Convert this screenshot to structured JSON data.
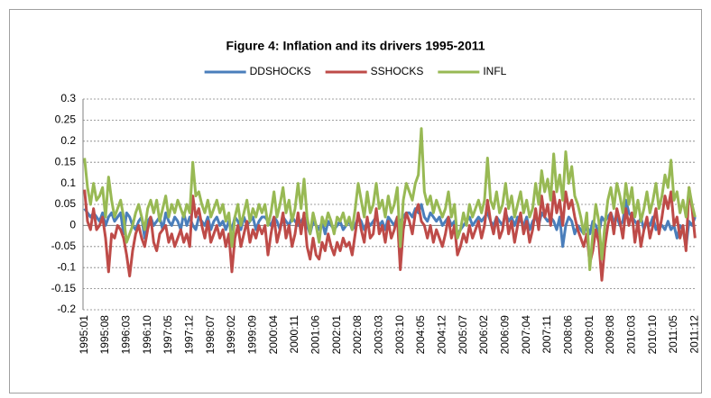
{
  "chart_data": {
    "type": "line",
    "title": "Figure 4: Inflation and its drivers 1995-2011",
    "categories": [
      "1995:01",
      null,
      null,
      null,
      null,
      null,
      null,
      "1995:08",
      null,
      null,
      null,
      null,
      null,
      null,
      "1996:03",
      null,
      null,
      null,
      null,
      null,
      null,
      "1996:10",
      null,
      null,
      null,
      null,
      null,
      null,
      "1997:05",
      null,
      null,
      null,
      null,
      null,
      null,
      "1997:12",
      null,
      null,
      null,
      null,
      null,
      null,
      "1998:07",
      null,
      null,
      null,
      null,
      null,
      null,
      "1999:02",
      null,
      null,
      null,
      null,
      null,
      null,
      "1999:09",
      null,
      null,
      null,
      null,
      null,
      null,
      "2000:04",
      null,
      null,
      null,
      null,
      null,
      null,
      "2000:11",
      null,
      null,
      null,
      null,
      null,
      null,
      "2001:06",
      null,
      null,
      null,
      null,
      null,
      null,
      "2002:01",
      null,
      null,
      null,
      null,
      null,
      null,
      "2002:08",
      null,
      null,
      null,
      null,
      null,
      null,
      "2003:03",
      null,
      null,
      null,
      null,
      null,
      null,
      "2003:10",
      null,
      null,
      null,
      null,
      null,
      null,
      "2004:05",
      null,
      null,
      null,
      null,
      null,
      null,
      "2004:12",
      null,
      null,
      null,
      null,
      null,
      null,
      "2005:07",
      null,
      null,
      null,
      null,
      null,
      null,
      "2006:02",
      null,
      null,
      null,
      null,
      null,
      null,
      "2006:09",
      null,
      null,
      null,
      null,
      null,
      null,
      "2007:04",
      null,
      null,
      null,
      null,
      null,
      null,
      "2007:11",
      null,
      null,
      null,
      null,
      null,
      null,
      "2008:06",
      null,
      null,
      null,
      null,
      null,
      null,
      "2009:01",
      null,
      null,
      null,
      null,
      null,
      null,
      "2009:08",
      null,
      null,
      null,
      null,
      null,
      null,
      "2010:03",
      null,
      null,
      null,
      null,
      null,
      null,
      "2010:10",
      null,
      null,
      null,
      null,
      null,
      null,
      "2011:05",
      null,
      null,
      null,
      null,
      null,
      null,
      "2011:12"
    ],
    "series": [
      {
        "name": "DDSHOCKS",
        "color": "#4a7ebb",
        "values": [
          0.04,
          0.03,
          0.02,
          0.03,
          0.02,
          0.01,
          0.03,
          0.0,
          0.02,
          0.03,
          0.01,
          0.02,
          0.03,
          -0.02,
          0.03,
          0.02,
          0.0,
          -0.01,
          0.01,
          0.02,
          -0.03,
          0.01,
          0.02,
          0.0,
          0.01,
          0.02,
          -0.01,
          0.03,
          0.01,
          0.0,
          0.02,
          0.01,
          -0.01,
          0.03,
          0.0,
          0.02,
          0.0,
          -0.01,
          0.02,
          0.01,
          0.0,
          0.02,
          -0.01,
          0.01,
          0.02,
          0.0,
          0.01,
          -0.01,
          0.01,
          -0.01,
          0.02,
          0.01,
          -0.01,
          0.02,
          0.0,
          0.01,
          0.02,
          -0.01,
          0.01,
          0.02,
          0.02,
          0.01,
          0.0,
          0.02,
          0.01,
          -0.01,
          0.02,
          0.01,
          0.0,
          0.02,
          0.01,
          0.0,
          0.01,
          0.02,
          0.0,
          -0.02,
          0.01,
          0.0,
          -0.01,
          0.01,
          -0.02,
          0.01,
          0.0,
          -0.01,
          0.0,
          0.01,
          -0.01,
          0.0,
          0.01,
          -0.01,
          0.0,
          0.02,
          0.01,
          -0.01,
          0.01,
          0.0,
          0.01,
          0.02,
          0.0,
          0.01,
          -0.01,
          0.02,
          0.01,
          0.0,
          0.02,
          0.01,
          0.02,
          0.03,
          0.03,
          0.02,
          0.04,
          0.03,
          0.05,
          0.02,
          0.01,
          0.03,
          0.02,
          0.01,
          0.02,
          0.0,
          0.01,
          0.02,
          0.0,
          0.01,
          -0.02,
          -0.01,
          0.0,
          0.01,
          0.02,
          0.0,
          0.01,
          0.02,
          0.01,
          0.02,
          0.03,
          0.01,
          0.0,
          0.02,
          0.01,
          0.0,
          0.03,
          0.01,
          0.02,
          0.0,
          0.02,
          0.01,
          0.0,
          0.02,
          -0.01,
          0.01,
          0.02,
          0.0,
          0.03,
          0.02,
          0.01,
          0.02,
          0.01,
          -0.01,
          0.02,
          -0.05,
          0.0,
          0.02,
          0.01,
          -0.02,
          0.0,
          -0.01,
          -0.02,
          0.0,
          -0.02,
          0.01,
          0.0,
          -0.02,
          0.02,
          0.01,
          0.02,
          0.03,
          0.01,
          0.02,
          0.0,
          0.01,
          0.06,
          0.03,
          0.02,
          0.01,
          0.0,
          0.02,
          -0.01,
          0.01,
          0.0,
          0.02,
          -0.01,
          0.0,
          0.0,
          -0.01,
          0.01,
          -0.01,
          0.0,
          -0.03,
          0.0,
          -0.01,
          -0.05,
          0.01,
          0.0,
          0.02
        ]
      },
      {
        "name": "SSHOCKS",
        "color": "#be4b48",
        "values": [
          0.085,
          0.01,
          -0.01,
          0.04,
          -0.01,
          0.0,
          0.02,
          -0.03,
          -0.11,
          -0.02,
          -0.03,
          0.0,
          -0.01,
          -0.03,
          -0.07,
          -0.12,
          -0.06,
          -0.02,
          0.0,
          -0.03,
          -0.05,
          -0.01,
          0.02,
          -0.04,
          -0.06,
          -0.02,
          -0.01,
          0.0,
          -0.04,
          -0.02,
          -0.05,
          -0.03,
          -0.01,
          -0.04,
          -0.02,
          -0.05,
          0.07,
          0.02,
          0.04,
          0.0,
          -0.03,
          0.01,
          -0.04,
          -0.02,
          0.0,
          -0.03,
          -0.01,
          -0.05,
          -0.02,
          -0.11,
          -0.03,
          0.0,
          -0.05,
          -0.02,
          0.01,
          -0.04,
          -0.01,
          -0.03,
          0.0,
          -0.02,
          0.0,
          -0.07,
          -0.02,
          0.02,
          -0.04,
          -0.01,
          0.03,
          -0.03,
          0.0,
          -0.05,
          -0.02,
          0.03,
          -0.02,
          0.03,
          -0.05,
          -0.08,
          -0.03,
          -0.07,
          -0.08,
          -0.04,
          -0.06,
          -0.02,
          -0.05,
          -0.07,
          -0.04,
          -0.06,
          -0.03,
          -0.05,
          -0.04,
          -0.07,
          -0.02,
          0.03,
          -0.01,
          -0.04,
          0.02,
          -0.03,
          -0.02,
          0.04,
          -0.02,
          0.0,
          -0.04,
          0.01,
          -0.03,
          -0.01,
          0.02,
          -0.105,
          -0.01,
          0.03,
          0.01,
          -0.02,
          0.03,
          0.05,
          0.01,
          0.0,
          -0.03,
          0.0,
          -0.04,
          -0.01,
          -0.03,
          -0.05,
          -0.02,
          0.02,
          -0.03,
          0.0,
          -0.07,
          -0.05,
          -0.02,
          -0.04,
          0.0,
          -0.03,
          -0.01,
          0.01,
          -0.03,
          0.0,
          0.06,
          0.01,
          -0.02,
          0.02,
          -0.03,
          -0.01,
          0.04,
          -0.02,
          0.01,
          -0.04,
          0.0,
          0.03,
          -0.02,
          0.01,
          -0.04,
          -0.01,
          0.04,
          -0.01,
          0.07,
          0.02,
          0.05,
          0.0,
          0.08,
          0.03,
          0.06,
          0.0,
          0.08,
          0.04,
          0.06,
          0.02,
          -0.01,
          -0.03,
          -0.05,
          -0.02,
          -0.09,
          -0.06,
          -0.01,
          -0.04,
          -0.13,
          -0.05,
          0.0,
          0.03,
          -0.02,
          0.04,
          0.01,
          -0.03,
          0.04,
          0.0,
          0.03,
          -0.04,
          0.01,
          -0.05,
          -0.01,
          0.02,
          -0.03,
          0.0,
          0.04,
          -0.02,
          0.02,
          0.07,
          0.04,
          0.08,
          0.0,
          0.02,
          -0.03,
          0.0,
          -0.06,
          0.09,
          0.04,
          -0.03
        ]
      },
      {
        "name": "INFL",
        "color": "#98b954",
        "values": [
          0.16,
          0.09,
          0.05,
          0.1,
          0.06,
          0.07,
          0.09,
          0.02,
          0.115,
          0.06,
          0.02,
          0.04,
          0.06,
          0.02,
          -0.04,
          -0.02,
          0.0,
          0.03,
          0.05,
          0.02,
          -0.01,
          0.04,
          0.06,
          0.03,
          0.06,
          0.01,
          0.04,
          0.07,
          0.02,
          0.05,
          0.03,
          0.06,
          0.04,
          0.02,
          0.05,
          0.03,
          0.15,
          0.07,
          0.08,
          0.05,
          0.03,
          0.06,
          0.02,
          0.04,
          0.06,
          0.03,
          0.05,
          0.01,
          0.03,
          -0.05,
          0.02,
          0.05,
          0.0,
          0.03,
          0.06,
          0.01,
          0.04,
          0.02,
          0.05,
          0.03,
          0.05,
          0.0,
          0.03,
          0.08,
          0.02,
          0.05,
          0.09,
          0.03,
          0.06,
          0.01,
          0.04,
          0.1,
          0.04,
          0.11,
          0.02,
          -0.02,
          0.03,
          0.0,
          -0.04,
          0.02,
          0.0,
          0.03,
          0.01,
          -0.02,
          0.02,
          0.01,
          0.03,
          0.0,
          0.02,
          -0.01,
          0.04,
          0.1,
          0.06,
          0.02,
          0.08,
          0.03,
          0.05,
          0.1,
          0.04,
          0.06,
          0.02,
          0.07,
          0.03,
          0.05,
          0.09,
          -0.05,
          0.06,
          0.1,
          0.08,
          0.06,
          0.1,
          0.12,
          0.23,
          0.08,
          0.05,
          0.07,
          0.03,
          0.06,
          0.04,
          0.02,
          0.04,
          0.08,
          0.02,
          0.05,
          -0.03,
          -0.01,
          0.03,
          0.0,
          0.05,
          0.02,
          0.04,
          0.06,
          0.03,
          0.06,
          0.16,
          0.06,
          0.04,
          0.08,
          0.03,
          0.05,
          0.1,
          0.04,
          0.07,
          0.02,
          0.05,
          0.08,
          0.03,
          0.06,
          0.02,
          0.04,
          0.1,
          0.05,
          0.13,
          0.08,
          0.11,
          0.06,
          0.17,
          0.08,
          0.12,
          0.06,
          0.175,
          0.1,
          0.14,
          0.07,
          0.05,
          0.02,
          -0.02,
          0.03,
          -0.105,
          -0.02,
          0.05,
          0.01,
          -0.08,
          0.0,
          0.06,
          0.09,
          0.04,
          0.1,
          0.07,
          0.03,
          0.1,
          0.05,
          0.09,
          0.02,
          0.06,
          0.01,
          0.04,
          0.08,
          0.03,
          0.06,
          0.1,
          0.04,
          0.07,
          0.12,
          0.09,
          0.155,
          0.06,
          0.08,
          0.03,
          0.06,
          0.02,
          0.09,
          0.05,
          0.02
        ]
      }
    ],
    "ylim": [
      -0.2,
      0.3
    ],
    "yticks": [
      -0.2,
      -0.15,
      -0.1,
      -0.05,
      0,
      0.05,
      0.1,
      0.15,
      0.2,
      0.25,
      0.3
    ],
    "grid": true,
    "legend": "top"
  }
}
